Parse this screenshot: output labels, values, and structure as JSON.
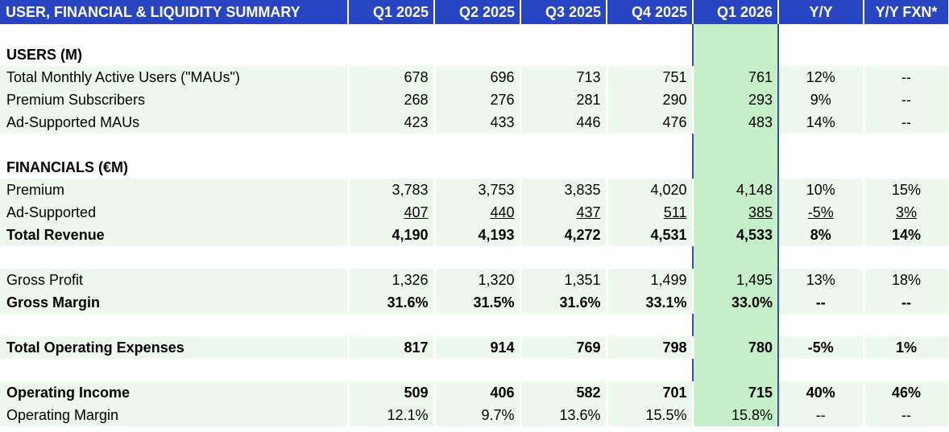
{
  "header": {
    "title": "USER, FINANCIAL & LIQUIDITY SUMMARY",
    "columns": [
      "Q1 2025",
      "Q2 2025",
      "Q3 2025",
      "Q4 2025",
      "Q1 2026",
      "Y/Y",
      "Y/Y FXN*"
    ]
  },
  "sections": {
    "users": "USERS (M)",
    "financials": "FINANCIALS (€M)"
  },
  "rows": {
    "mau": {
      "label": "Total Monthly Active Users (\"MAUs\")",
      "values": [
        "678",
        "696",
        "713",
        "751",
        "761",
        "12%",
        "--"
      ]
    },
    "premium_subs": {
      "label": "Premium Subscribers",
      "values": [
        "268",
        "276",
        "281",
        "290",
        "293",
        "9%",
        "--"
      ]
    },
    "ad_mau": {
      "label": "Ad-Supported MAUs",
      "values": [
        "423",
        "433",
        "446",
        "476",
        "483",
        "14%",
        "--"
      ]
    },
    "premium": {
      "label": "Premium",
      "values": [
        "3,783",
        "3,753",
        "3,835",
        "4,020",
        "4,148",
        "10%",
        "15%"
      ]
    },
    "ad_supported": {
      "label": "Ad-Supported",
      "values": [
        "407",
        "440",
        "437",
        "511",
        "385",
        "-5%",
        "3%"
      ]
    },
    "total_revenue": {
      "label": "Total Revenue",
      "values": [
        "4,190",
        "4,193",
        "4,272",
        "4,531",
        "4,533",
        "8%",
        "14%"
      ]
    },
    "gross_profit": {
      "label": "Gross Profit",
      "values": [
        "1,326",
        "1,320",
        "1,351",
        "1,499",
        "1,495",
        "13%",
        "18%"
      ]
    },
    "gross_margin": {
      "label": "Gross Margin",
      "values": [
        "31.6%",
        "31.5%",
        "31.6%",
        "33.1%",
        "33.0%",
        "--",
        "--"
      ]
    },
    "total_opex": {
      "label": "Total Operating Expenses",
      "values": [
        "817",
        "914",
        "769",
        "798",
        "780",
        "-5%",
        "1%"
      ]
    },
    "operating_income": {
      "label": "Operating Income",
      "values": [
        "509",
        "406",
        "582",
        "701",
        "715",
        "40%",
        "46%"
      ]
    },
    "operating_margin": {
      "label": "Operating Margin",
      "values": [
        "12.1%",
        "9.7%",
        "13.6%",
        "15.5%",
        "15.8%",
        "--",
        "--"
      ]
    }
  },
  "colors": {
    "header_bg": "#2846c4",
    "row_bg": "#eef9ee",
    "highlight_col": "#c5efc9",
    "highlight_border": "#3a4fc0"
  }
}
